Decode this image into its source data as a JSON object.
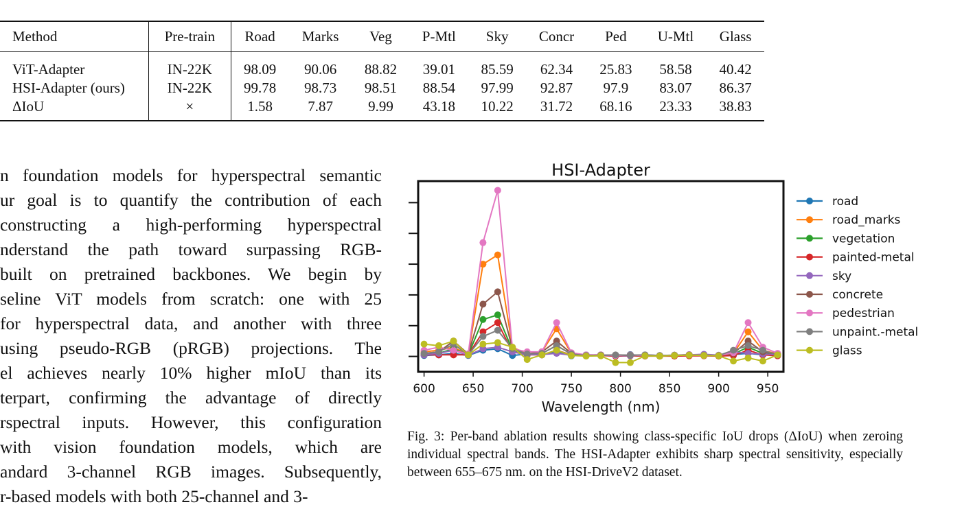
{
  "table": {
    "headers": [
      "Method",
      "Pre-train",
      "Road",
      "Marks",
      "Veg",
      "P-Mtl",
      "Sky",
      "Concr",
      "Ped",
      "U-Mtl",
      "Glass"
    ],
    "rows": [
      [
        "ViT-Adapter",
        "IN-22K",
        "98.09",
        "90.06",
        "88.82",
        "39.01",
        "85.59",
        "62.34",
        "25.83",
        "58.58",
        "40.42"
      ],
      [
        "HSI-Adapter (ours)",
        "IN-22K",
        "99.78",
        "98.73",
        "98.51",
        "88.54",
        "97.99",
        "92.87",
        "97.9",
        "83.07",
        "86.37"
      ],
      [
        "ΔIoU",
        "×",
        "1.58",
        "7.87",
        "9.99",
        "43.18",
        "10.22",
        "31.72",
        "68.16",
        "23.33",
        "38.83"
      ]
    ]
  },
  "body_text": {
    "lines": [
      "n foundation models for hyperspectral semantic",
      "ur goal is to quantify the contribution of each",
      "constructing a high-performing hyperspectral",
      "nderstand the path toward surpassing RGB-",
      "built on pretrained backbones. We begin by",
      "seline ViT models from scratch: one with 25",
      "for hyperspectral data, and another with three",
      "using pseudo-RGB (pRGB) projections. The",
      "el achieves nearly 10% higher mIoU than its",
      "terpart, confirming the advantage of directly",
      "rspectral inputs. However, this configuration",
      "with vision foundation models, which are",
      "andard 3-channel RGB images. Subsequently,",
      "r-based models with both 25-channel and 3-"
    ]
  },
  "caption": "Fig. 3: Per-band ablation results showing class-specific IoU drops (ΔIoU) when zeroing individual spectral bands. The HSI-Adapter exhibits sharp spectral sensitivity, especially between 655–675 nm. on the HSI-DriveV2 dataset.",
  "chart_data": {
    "type": "line",
    "title": "HSI-Adapter",
    "xlabel": "Wavelength (nm)",
    "ylabel": "",
    "xlim": [
      594,
      966
    ],
    "ylim": [
      -5,
      57
    ],
    "xticks": [
      600,
      650,
      700,
      750,
      800,
      850,
      900,
      950
    ],
    "yticks": [
      0,
      10,
      20,
      30,
      40,
      50
    ],
    "ytick_labels_shown": false,
    "grid": false,
    "legend_position": "outside-right",
    "x": [
      600,
      615,
      630,
      645,
      660,
      675,
      690,
      705,
      720,
      735,
      750,
      765,
      780,
      795,
      810,
      825,
      840,
      855,
      870,
      885,
      900,
      915,
      930,
      945,
      960
    ],
    "series": [
      {
        "name": "road",
        "color": "#1f77b4",
        "values": [
          0.3,
          0.5,
          1.0,
          0.3,
          2.0,
          2.5,
          0.3,
          0.8,
          0.5,
          1.5,
          0.2,
          0.5,
          0.4,
          0.1,
          0.6,
          0.2,
          0.1,
          0.3,
          0.5,
          0.4,
          0.3,
          0.6,
          1.0,
          0.5,
          0.4
        ]
      },
      {
        "name": "road_marks",
        "color": "#ff7f0e",
        "values": [
          1.5,
          2.0,
          3.0,
          0.5,
          30.0,
          33.0,
          3.0,
          0.8,
          1.5,
          9.0,
          1.0,
          0.3,
          0.5,
          0.2,
          0.5,
          0.2,
          0.1,
          0.4,
          0.5,
          0.3,
          0.2,
          1.0,
          8.0,
          2.0,
          0.8
        ]
      },
      {
        "name": "vegetation",
        "color": "#2ca02c",
        "values": [
          0.8,
          1.0,
          2.5,
          0.5,
          12.0,
          13.5,
          2.0,
          0.5,
          1.0,
          3.5,
          0.8,
          0.3,
          0.4,
          0.3,
          0.5,
          0.2,
          0.1,
          0.3,
          0.4,
          0.3,
          0.2,
          0.8,
          3.0,
          1.0,
          0.5
        ]
      },
      {
        "name": "painted-metal",
        "color": "#d62728",
        "values": [
          0.5,
          0.5,
          0.5,
          0.5,
          8.0,
          11.0,
          1.5,
          0.5,
          0.5,
          2.0,
          0.5,
          0.2,
          0.3,
          0.1,
          0.2,
          0.1,
          0.1,
          0.1,
          0.2,
          0.2,
          0.1,
          0.3,
          2.0,
          0.5,
          0.2
        ]
      },
      {
        "name": "sky",
        "color": "#9467bd",
        "values": [
          0.5,
          1.0,
          2.0,
          0.4,
          2.5,
          3.0,
          1.5,
          0.5,
          0.6,
          1.0,
          0.4,
          0.3,
          0.4,
          0.3,
          0.2,
          0.5,
          0.3,
          0.4,
          0.5,
          0.7,
          0.4,
          1.5,
          1.0,
          0.8,
          0.5
        ]
      },
      {
        "name": "concrete",
        "color": "#8c564b",
        "values": [
          1.0,
          1.5,
          5.0,
          0.8,
          17.0,
          21.0,
          2.5,
          0.8,
          1.5,
          5.0,
          1.0,
          0.4,
          0.5,
          0.3,
          0.4,
          0.2,
          0.2,
          0.4,
          0.5,
          0.3,
          0.3,
          1.0,
          5.0,
          1.5,
          0.8
        ]
      },
      {
        "name": "pedestrian",
        "color": "#e377c2",
        "values": [
          2.0,
          3.0,
          2.0,
          0.8,
          37.0,
          54.0,
          2.5,
          1.5,
          1.5,
          11.0,
          1.2,
          0.5,
          0.5,
          0.3,
          0.5,
          0.2,
          0.2,
          0.4,
          0.6,
          0.4,
          0.3,
          1.2,
          11.0,
          3.0,
          1.0
        ]
      },
      {
        "name": "unpaint.-metal",
        "color": "#7f7f7f",
        "values": [
          1.0,
          1.5,
          4.0,
          0.5,
          6.5,
          8.5,
          2.5,
          0.8,
          1.0,
          3.5,
          0.8,
          0.3,
          0.4,
          0.5,
          0.4,
          0.5,
          0.3,
          0.4,
          0.5,
          0.4,
          0.3,
          2.0,
          3.5,
          2.0,
          0.5
        ]
      },
      {
        "name": "glass",
        "color": "#bcbd22",
        "values": [
          4.0,
          3.5,
          5.0,
          0.5,
          4.0,
          4.5,
          3.0,
          -1.0,
          0.5,
          2.0,
          0.3,
          0.1,
          0.2,
          -2.0,
          -2.0,
          0.2,
          0.1,
          0.3,
          0.4,
          0.3,
          0.2,
          -1.5,
          -0.5,
          -1.5,
          0.5
        ]
      }
    ]
  }
}
